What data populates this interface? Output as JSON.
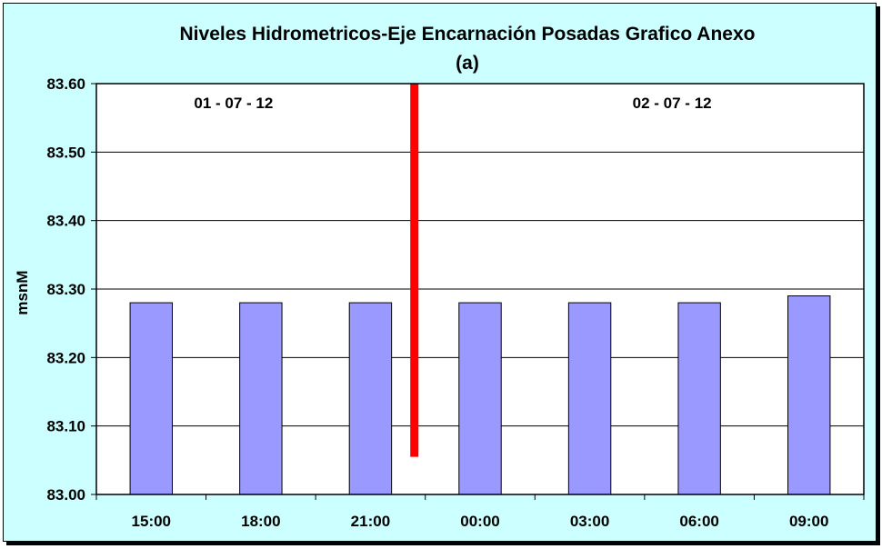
{
  "chart_data": {
    "type": "bar",
    "title": "Niveles Hidrometricos-Eje Encarnación Posadas Grafico Anexo",
    "subtitle": "(a)",
    "xlabel": "",
    "ylabel": "msnM",
    "categories": [
      "15:00",
      "18:00",
      "21:00",
      "00:00",
      "03:00",
      "06:00",
      "09:00"
    ],
    "values": [
      83.28,
      83.28,
      83.28,
      83.28,
      83.28,
      83.28,
      83.29
    ],
    "ylim": [
      83.0,
      83.6
    ],
    "yticks": [
      "83.00",
      "83.10",
      "83.20",
      "83.30",
      "83.40",
      "83.50",
      "83.60"
    ],
    "grid": true,
    "legend": "none",
    "annotations": [
      {
        "text": "01 - 07 - 12",
        "x": "18:00"
      },
      {
        "text": "02 - 07 - 12",
        "x": "06:00"
      }
    ],
    "divider": {
      "between": [
        "21:00",
        "00:00"
      ],
      "from": 83.055,
      "to": 83.6
    }
  },
  "colors": {
    "background": "#ccffff",
    "plot_area": "#ffffff",
    "bar_fill": "#9999ff",
    "bar_stroke": "#000000",
    "divider": "#ff0000",
    "grid": "#000000"
  }
}
